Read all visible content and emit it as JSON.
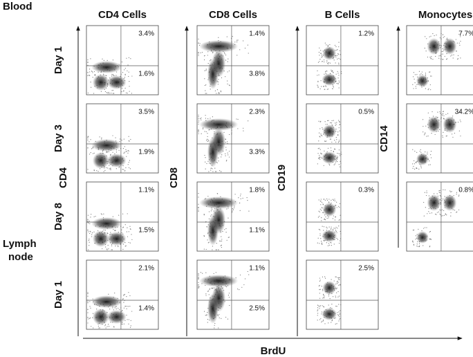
{
  "figure": {
    "blood": "Blood",
    "lymph_node": [
      "Lymph",
      "node"
    ],
    "rows": [
      "Day 1",
      "Day 3",
      "Day 8",
      "Day 1"
    ],
    "x_axis": "BrdU",
    "columns": [
      {
        "title": "CD4 Cells",
        "axis": "CD4",
        "panels": [
          {
            "upper": "3.4%",
            "lower": "1.6%"
          },
          {
            "upper": "3.5%",
            "lower": "1.9%"
          },
          {
            "upper": "1.1%",
            "lower": "1.5%"
          },
          {
            "upper": "2.1%",
            "lower": "1.4%"
          }
        ]
      },
      {
        "title": "CD8 Cells",
        "axis": "CD8",
        "panels": [
          {
            "upper": "1.4%",
            "lower": "3.8%"
          },
          {
            "upper": "2.3%",
            "lower": "3.3%"
          },
          {
            "upper": "1.8%",
            "lower": "1.1%"
          },
          {
            "upper": "1.1%",
            "lower": "2.5%"
          }
        ]
      },
      {
        "title": "B Cells",
        "axis": "CD19",
        "panels": [
          {
            "upper": "1.2%"
          },
          {
            "upper": "0.5%"
          },
          {
            "upper": "0.3%"
          },
          {
            "upper": "2.5%"
          }
        ]
      },
      {
        "title": "Monocytes",
        "axis": "CD14",
        "panels": [
          {
            "upper": "7.7%"
          },
          {
            "upper": "34.2%"
          },
          {
            "upper": "0.8%"
          }
        ]
      }
    ]
  }
}
